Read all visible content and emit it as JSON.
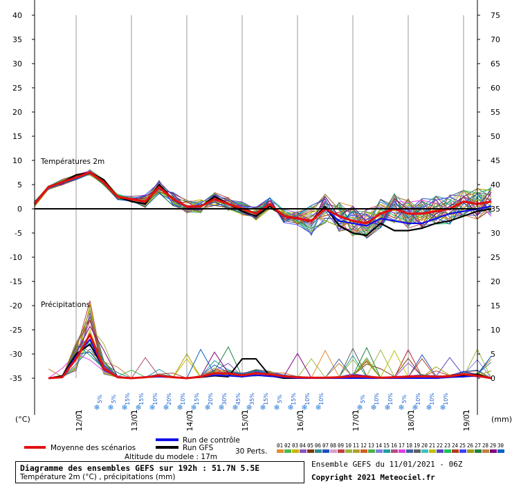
{
  "chart_data": {
    "type": "line",
    "title": "Diagramme des ensembles GEFS sur 192h : 51.7N 5.5E",
    "subtitle": "Température 2m (°C) , précipitations (mm)",
    "section_labels": [
      "Températures 2m",
      "Précipitations"
    ],
    "left_axis": {
      "unit": "(°C)",
      "ylim": [
        -35,
        40
      ],
      "ticks": [
        40,
        35,
        30,
        25,
        20,
        15,
        10,
        5,
        0,
        -5,
        -10,
        -15,
        -20,
        -25,
        -30,
        -35
      ]
    },
    "right_axis": {
      "unit": "(mm)",
      "ylim": [
        0,
        75
      ],
      "ticks": [
        75,
        70,
        65,
        60,
        55,
        50,
        45,
        40,
        35,
        30,
        25,
        20,
        15,
        10,
        5,
        0
      ]
    },
    "x_labels": [
      "12/01",
      "13/01",
      "14/01",
      "15/01",
      "16/01",
      "17/01",
      "18/01",
      "19/01"
    ],
    "x_hours": [
      18,
      42,
      66,
      90,
      114,
      138,
      162,
      186
    ],
    "xlim_hours": [
      0,
      192
    ],
    "step_hours": 6,
    "temperature_mean": [
      1,
      4.5,
      5.5,
      6.5,
      7.5,
      5.5,
      2.5,
      2,
      1.5,
      4.5,
      2,
      0.5,
      0.5,
      2,
      1,
      0,
      -1,
      1,
      -1.5,
      -2,
      -2.5,
      0,
      -1.5,
      -2.5,
      -3,
      -1,
      0,
      -1,
      -1,
      -0.5,
      0,
      1.5,
      1,
      1.5
    ],
    "temperature_gfs": [
      1,
      4.5,
      5.5,
      7,
      7.5,
      6,
      2.5,
      1.5,
      1,
      5,
      2,
      0.5,
      0.5,
      2.5,
      1,
      -0.5,
      -1.5,
      0.5,
      -1.5,
      -2,
      -2.5,
      0.5,
      -3.5,
      -5,
      -5.5,
      -3,
      -4.5,
      -4.5,
      -4,
      -3,
      -2.5,
      -1.5,
      -0.5,
      0
    ],
    "temperature_control": [
      1,
      4.5,
      5.5,
      6.5,
      7.5,
      5.5,
      2.5,
      2,
      1.5,
      4.5,
      2,
      0.5,
      0.5,
      2,
      1,
      0,
      -1,
      1,
      -1.5,
      -2,
      -2.5,
      0,
      -2.5,
      -3,
      -3.5,
      -2,
      -2.5,
      -3,
      -3,
      -2,
      -1,
      -0.5,
      0,
      0.5
    ],
    "precip_mean": [
      null,
      0,
      0.2,
      4,
      9,
      2,
      0.2,
      0,
      0.2,
      0.5,
      0.2,
      0,
      0.3,
      1,
      1,
      0.6,
      1,
      0.8,
      0.4,
      0.2,
      0.1,
      0.1,
      0.2,
      0.4,
      0.3,
      0.1,
      0.2,
      0.3,
      0.4,
      0.3,
      0.4,
      0.8,
      0.5,
      0
    ],
    "precip_gfs": [
      null,
      0,
      0.5,
      5,
      7,
      2,
      0.2,
      0,
      0.2,
      0.3,
      0.2,
      0,
      0.2,
      0.5,
      0.3,
      4,
      4,
      0.5,
      0,
      0,
      0,
      0,
      0,
      0,
      0,
      0,
      0,
      0,
      0,
      0,
      0.2,
      0.5,
      0.8,
      0
    ],
    "precip_control": [
      null,
      0,
      0.3,
      4.5,
      8,
      1.8,
      0.2,
      0,
      0.2,
      0.3,
      0.2,
      0,
      0.3,
      0.6,
      0.5,
      0.3,
      0.6,
      0.4,
      0.2,
      0,
      0,
      0,
      0,
      0,
      0,
      0,
      0,
      0,
      0,
      0,
      0.2,
      0.3,
      0.5,
      0
    ],
    "snow_prob_labels": [
      "5%",
      "5%",
      "15%",
      "15%",
      "10%",
      "20%",
      "10%",
      "15%",
      "20%",
      "30%",
      "45%",
      "35%",
      "15%",
      "5%",
      "15%",
      "10%",
      "10%",
      "5%",
      "10%",
      "10%",
      "5%",
      "10%",
      "10%",
      "10%"
    ],
    "snow_prob_x_hours": [
      27,
      33,
      39,
      45,
      51,
      57,
      63,
      69,
      75,
      81,
      87,
      93,
      99,
      105,
      111,
      117,
      123,
      141,
      147,
      153,
      159,
      165,
      171,
      177
    ]
  },
  "legend": {
    "mean_label": "Moyenne des scénarios",
    "control_label": "Run de contrôle",
    "gfs_label": "Run GFS",
    "altitude": "Altitude du modele : 17m",
    "perts_label": "30 Perts.",
    "pert_numbers": [
      "01",
      "02",
      "03",
      "04",
      "05",
      "06",
      "07",
      "08",
      "09",
      "10",
      "11",
      "12",
      "13",
      "14",
      "15",
      "16",
      "17",
      "18",
      "19",
      "20",
      "21",
      "22",
      "23",
      "24",
      "25",
      "26",
      "27",
      "28",
      "29",
      "30"
    ],
    "pert_colors": [
      "#e68a2e",
      "#4cb84c",
      "#c9b400",
      "#8c4fc0",
      "#7a3b10",
      "#2a8f8f",
      "#1f4fbf",
      "#d6a0c8",
      "#c04040",
      "#9ab840",
      "#b0a030",
      "#d06020",
      "#50b050",
      "#8080e0",
      "#20a0a0",
      "#b05080",
      "#e040e0",
      "#4060a0",
      "#606060",
      "#40c0c0",
      "#c0c000",
      "#6040c0",
      "#20c060",
      "#b04020",
      "#4040ff",
      "#a0a000",
      "#208040",
      "#c08040",
      "#800080",
      "#0060c0"
    ]
  },
  "footer": {
    "ensemble_info": "Ensemble GEFS du 11/01/2021 - 06Z",
    "copyright": "Copyright 2021 Meteociel.fr"
  },
  "colors": {
    "mean": "#e31010",
    "control": "#1010e8",
    "gfs": "#000000"
  }
}
